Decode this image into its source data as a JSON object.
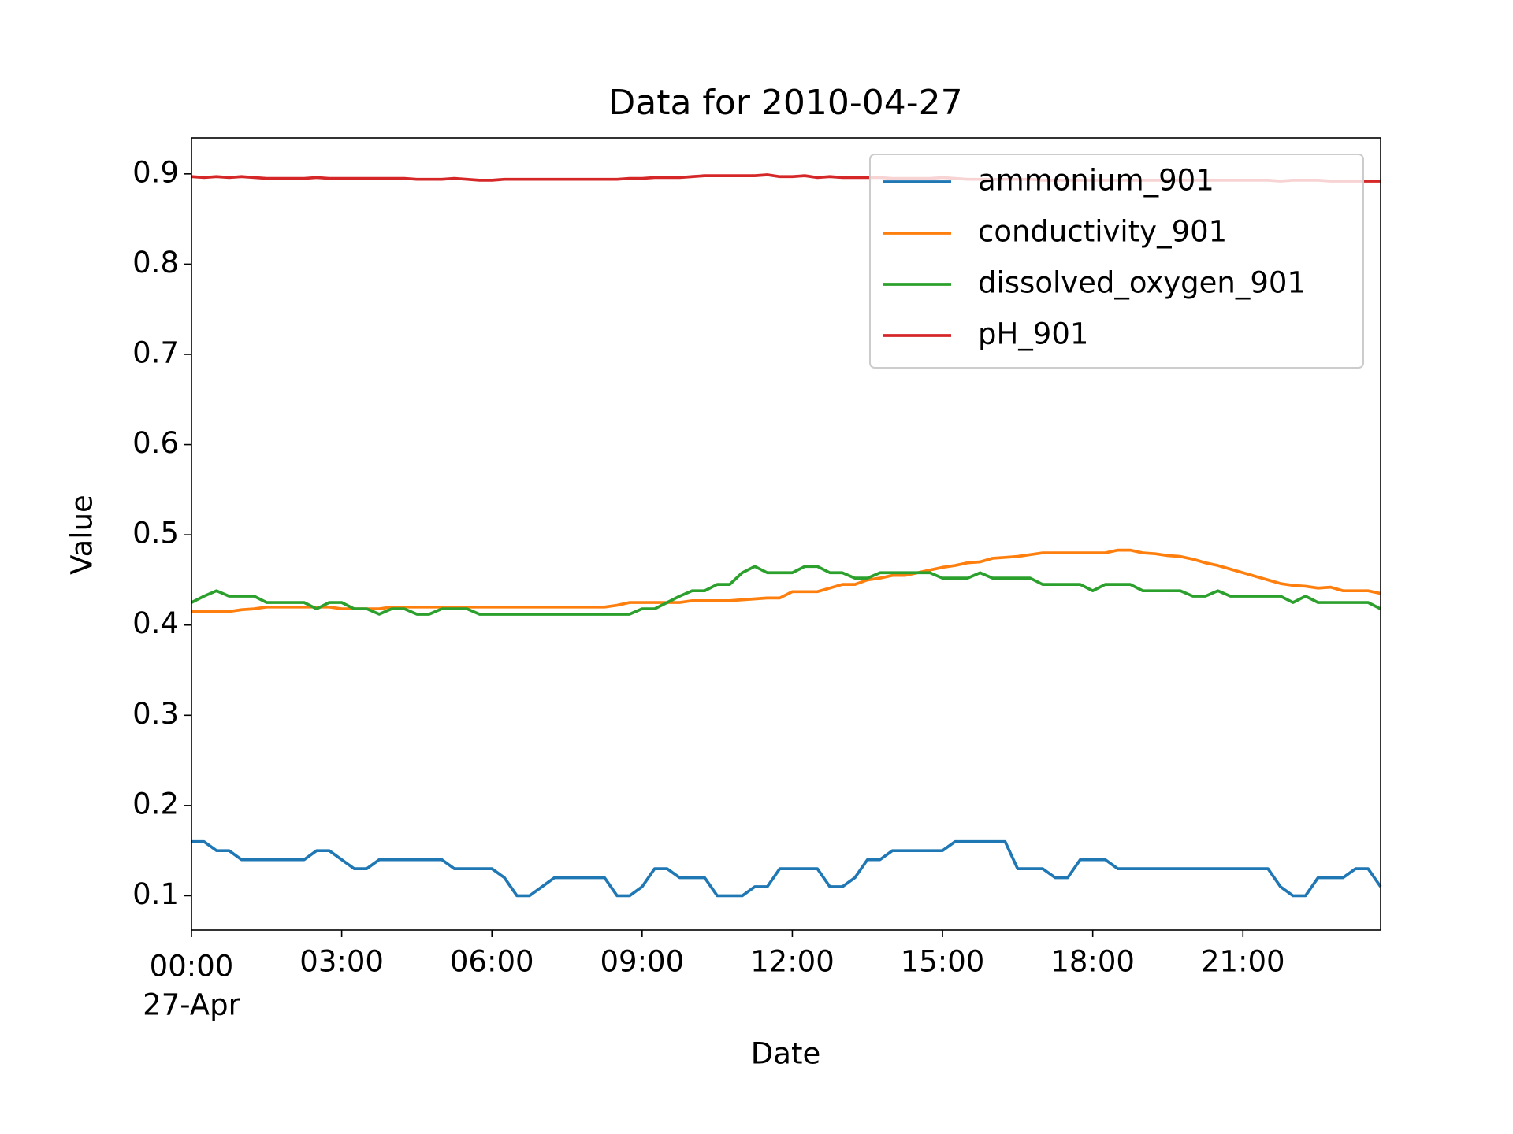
{
  "chart_data": {
    "type": "line",
    "title": "Data for 2010-04-27",
    "xlabel": "Date",
    "ylabel": "Value",
    "x_date_label": "27-Apr",
    "x": [
      0,
      0.25,
      0.5,
      0.75,
      1,
      1.25,
      1.5,
      1.75,
      2,
      2.25,
      2.5,
      2.75,
      3,
      3.25,
      3.5,
      3.75,
      4,
      4.25,
      4.5,
      4.75,
      5,
      5.25,
      5.5,
      5.75,
      6,
      6.25,
      6.5,
      6.75,
      7,
      7.25,
      7.5,
      7.75,
      8,
      8.25,
      8.5,
      8.75,
      9,
      9.25,
      9.5,
      9.75,
      10,
      10.25,
      10.5,
      10.75,
      11,
      11.25,
      11.5,
      11.75,
      12,
      12.25,
      12.5,
      12.75,
      13,
      13.25,
      13.5,
      13.75,
      14,
      14.25,
      14.5,
      14.75,
      15,
      15.25,
      15.5,
      15.75,
      16,
      16.25,
      16.5,
      16.75,
      17,
      17.25,
      17.5,
      17.75,
      18,
      18.25,
      18.5,
      18.75,
      19,
      19.25,
      19.5,
      19.75,
      20,
      20.25,
      20.5,
      20.75,
      21,
      21.25,
      21.5,
      21.75,
      22,
      22.25,
      22.5,
      22.75,
      23,
      23.25,
      23.5,
      23.75
    ],
    "xlim": [
      0,
      23.75
    ],
    "xticks": [
      {
        "value": 0,
        "label": "00:00"
      },
      {
        "value": 3,
        "label": "03:00"
      },
      {
        "value": 6,
        "label": "06:00"
      },
      {
        "value": 9,
        "label": "09:00"
      },
      {
        "value": 12,
        "label": "12:00"
      },
      {
        "value": 15,
        "label": "15:00"
      },
      {
        "value": 18,
        "label": "18:00"
      },
      {
        "value": 21,
        "label": "21:00"
      }
    ],
    "ylim": [
      0.062,
      0.94
    ],
    "yticks": [
      0.1,
      0.2,
      0.3,
      0.4,
      0.5,
      0.6,
      0.7,
      0.8,
      0.9
    ],
    "grid": false,
    "legend": "upper right",
    "series": [
      {
        "name": "ammonium_901",
        "color": "#1f77b4",
        "values": [
          0.16,
          0.16,
          0.15,
          0.15,
          0.14,
          0.14,
          0.14,
          0.14,
          0.14,
          0.14,
          0.15,
          0.15,
          0.14,
          0.13,
          0.13,
          0.14,
          0.14,
          0.14,
          0.14,
          0.14,
          0.14,
          0.13,
          0.13,
          0.13,
          0.13,
          0.12,
          0.1,
          0.1,
          0.11,
          0.12,
          0.12,
          0.12,
          0.12,
          0.12,
          0.1,
          0.1,
          0.11,
          0.13,
          0.13,
          0.12,
          0.12,
          0.12,
          0.1,
          0.1,
          0.1,
          0.11,
          0.11,
          0.13,
          0.13,
          0.13,
          0.13,
          0.11,
          0.11,
          0.12,
          0.14,
          0.14,
          0.15,
          0.15,
          0.15,
          0.15,
          0.15,
          0.16,
          0.16,
          0.16,
          0.16,
          0.16,
          0.13,
          0.13,
          0.13,
          0.12,
          0.12,
          0.14,
          0.14,
          0.14,
          0.13,
          0.13,
          0.13,
          0.13,
          0.13,
          0.13,
          0.13,
          0.13,
          0.13,
          0.13,
          0.13,
          0.13,
          0.13,
          0.11,
          0.1,
          0.1,
          0.12,
          0.12,
          0.12,
          0.13,
          0.13,
          0.11
        ]
      },
      {
        "name": "conductivity_901",
        "color": "#ff7f0e",
        "values": [
          0.415,
          0.415,
          0.415,
          0.415,
          0.417,
          0.418,
          0.42,
          0.42,
          0.42,
          0.42,
          0.42,
          0.42,
          0.418,
          0.418,
          0.418,
          0.418,
          0.42,
          0.42,
          0.42,
          0.42,
          0.42,
          0.42,
          0.42,
          0.42,
          0.42,
          0.42,
          0.42,
          0.42,
          0.42,
          0.42,
          0.42,
          0.42,
          0.42,
          0.42,
          0.422,
          0.425,
          0.425,
          0.425,
          0.425,
          0.425,
          0.427,
          0.427,
          0.427,
          0.427,
          0.428,
          0.429,
          0.43,
          0.43,
          0.437,
          0.437,
          0.437,
          0.441,
          0.445,
          0.445,
          0.45,
          0.452,
          0.455,
          0.455,
          0.458,
          0.461,
          0.464,
          0.466,
          0.469,
          0.47,
          0.474,
          0.475,
          0.476,
          0.478,
          0.48,
          0.48,
          0.48,
          0.48,
          0.48,
          0.48,
          0.483,
          0.483,
          0.48,
          0.479,
          0.477,
          0.476,
          0.473,
          0.469,
          0.466,
          0.462,
          0.458,
          0.454,
          0.45,
          0.446,
          0.444,
          0.443,
          0.441,
          0.442,
          0.438,
          0.438,
          0.438,
          0.435
        ]
      },
      {
        "name": "dissolved_oxygen_901",
        "color": "#2ca02c",
        "values": [
          0.425,
          0.432,
          0.438,
          0.432,
          0.432,
          0.432,
          0.425,
          0.425,
          0.425,
          0.425,
          0.418,
          0.425,
          0.425,
          0.418,
          0.418,
          0.412,
          0.418,
          0.418,
          0.412,
          0.412,
          0.418,
          0.418,
          0.418,
          0.412,
          0.412,
          0.412,
          0.412,
          0.412,
          0.412,
          0.412,
          0.412,
          0.412,
          0.412,
          0.412,
          0.412,
          0.412,
          0.418,
          0.418,
          0.425,
          0.432,
          0.438,
          0.438,
          0.445,
          0.445,
          0.458,
          0.465,
          0.458,
          0.458,
          0.458,
          0.465,
          0.465,
          0.458,
          0.458,
          0.452,
          0.452,
          0.458,
          0.458,
          0.458,
          0.458,
          0.458,
          0.452,
          0.452,
          0.452,
          0.458,
          0.452,
          0.452,
          0.452,
          0.452,
          0.445,
          0.445,
          0.445,
          0.445,
          0.438,
          0.445,
          0.445,
          0.445,
          0.438,
          0.438,
          0.438,
          0.438,
          0.432,
          0.432,
          0.438,
          0.432,
          0.432,
          0.432,
          0.432,
          0.432,
          0.425,
          0.432,
          0.425,
          0.425,
          0.425,
          0.425,
          0.425,
          0.418
        ]
      },
      {
        "name": "pH_901",
        "color": "#d62728",
        "values": [
          0.897,
          0.896,
          0.897,
          0.896,
          0.897,
          0.896,
          0.895,
          0.895,
          0.895,
          0.895,
          0.896,
          0.895,
          0.895,
          0.895,
          0.895,
          0.895,
          0.895,
          0.895,
          0.894,
          0.894,
          0.894,
          0.895,
          0.894,
          0.893,
          0.893,
          0.894,
          0.894,
          0.894,
          0.894,
          0.894,
          0.894,
          0.894,
          0.894,
          0.894,
          0.894,
          0.895,
          0.895,
          0.896,
          0.896,
          0.896,
          0.897,
          0.898,
          0.898,
          0.898,
          0.898,
          0.898,
          0.899,
          0.897,
          0.897,
          0.898,
          0.896,
          0.897,
          0.896,
          0.896,
          0.896,
          0.896,
          0.895,
          0.895,
          0.895,
          0.895,
          0.896,
          0.895,
          0.894,
          0.894,
          0.894,
          0.894,
          0.894,
          0.894,
          0.893,
          0.893,
          0.893,
          0.893,
          0.893,
          0.893,
          0.893,
          0.893,
          0.893,
          0.893,
          0.893,
          0.893,
          0.893,
          0.893,
          0.893,
          0.893,
          0.893,
          0.893,
          0.893,
          0.892,
          0.893,
          0.893,
          0.893,
          0.892,
          0.892,
          0.892,
          0.892,
          0.892
        ]
      }
    ]
  }
}
